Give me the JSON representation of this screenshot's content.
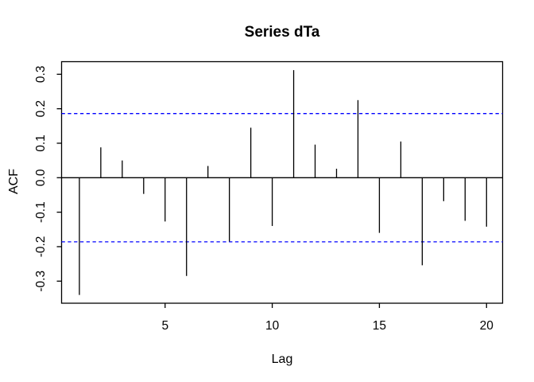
{
  "window": {
    "background": "#ffffff"
  },
  "chart_data": {
    "type": "stem",
    "variant": "autocorrelation-function",
    "title": "Series dTa",
    "xlabel": "Lag",
    "ylabel": "ACF",
    "x": [
      1,
      2,
      3,
      4,
      5,
      6,
      7,
      8,
      9,
      10,
      11,
      12,
      13,
      14,
      15,
      16,
      17,
      18,
      19,
      20
    ],
    "values": [
      -0.34,
      0.088,
      0.05,
      -0.047,
      -0.127,
      -0.285,
      0.034,
      -0.185,
      0.145,
      -0.14,
      0.312,
      0.096,
      0.026,
      0.225,
      -0.16,
      0.105,
      -0.254,
      -0.068,
      -0.125,
      -0.142
    ],
    "confidence_bands": {
      "upper": 0.186,
      "lower": -0.186,
      "line_style": "dashed",
      "color": "#0000ff"
    },
    "zero_line": true,
    "xlim": [
      0.17,
      20.75
    ],
    "ylim": [
      -0.364,
      0.3365
    ],
    "x_ticks": {
      "values": [
        5,
        10,
        15,
        20
      ],
      "labels": [
        "5",
        "10",
        "15",
        "20"
      ]
    },
    "y_ticks": {
      "values": [
        -0.3,
        -0.2,
        -0.1,
        0.0,
        0.1,
        0.2,
        0.3
      ],
      "labels": [
        "-0.3",
        "-0.2",
        "-0.1",
        "0.0",
        "0.1",
        "0.2",
        "0.3"
      ]
    },
    "grid": false,
    "legend": null,
    "colors": {
      "spike": "#000000",
      "axis": "#000000",
      "text": "#000000",
      "background": "#ffffff"
    }
  }
}
